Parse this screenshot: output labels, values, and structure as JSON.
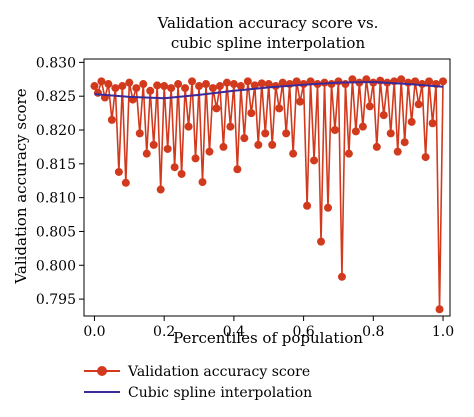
{
  "chart_data": {
    "type": "line",
    "title": [
      "Validation accuracy score vs.",
      "cubic spline interpolation"
    ],
    "xlabel": "Percentiles of population",
    "ylabel": "Validation accuracy score",
    "xlim": [
      -0.03,
      1.02
    ],
    "ylim": [
      0.7925,
      0.8305
    ],
    "xticks": [
      0.0,
      0.2,
      0.4,
      0.6,
      0.8,
      1.0
    ],
    "xtick_labels": [
      "0.0",
      "0.2",
      "0.4",
      "0.6",
      "0.8",
      "1.0"
    ],
    "yticks": [
      0.795,
      0.8,
      0.805,
      0.81,
      0.815,
      0.82,
      0.825,
      0.83
    ],
    "ytick_labels": [
      "0.795",
      "0.800",
      "0.805",
      "0.810",
      "0.815",
      "0.820",
      "0.825",
      "0.830"
    ],
    "grid": false,
    "legend_position": "below-left",
    "series": [
      {
        "name": "Validation accuracy score",
        "style": "line-markers",
        "color": "#d23a1e",
        "x": [
          0.0,
          0.01,
          0.02,
          0.03,
          0.04,
          0.05,
          0.06,
          0.07,
          0.08,
          0.09,
          0.1,
          0.11,
          0.12,
          0.13,
          0.14,
          0.15,
          0.16,
          0.17,
          0.18,
          0.19,
          0.2,
          0.21,
          0.22,
          0.23,
          0.24,
          0.25,
          0.26,
          0.27,
          0.28,
          0.29,
          0.3,
          0.31,
          0.32,
          0.33,
          0.34,
          0.35,
          0.36,
          0.37,
          0.38,
          0.39,
          0.4,
          0.41,
          0.42,
          0.43,
          0.44,
          0.45,
          0.46,
          0.47,
          0.48,
          0.49,
          0.5,
          0.51,
          0.52,
          0.53,
          0.54,
          0.55,
          0.56,
          0.57,
          0.58,
          0.59,
          0.6,
          0.61,
          0.62,
          0.63,
          0.64,
          0.65,
          0.66,
          0.67,
          0.68,
          0.69,
          0.7,
          0.71,
          0.72,
          0.73,
          0.74,
          0.75,
          0.76,
          0.77,
          0.78,
          0.79,
          0.8,
          0.81,
          0.82,
          0.83,
          0.84,
          0.85,
          0.86,
          0.87,
          0.88,
          0.89,
          0.9,
          0.91,
          0.92,
          0.93,
          0.94,
          0.95,
          0.96,
          0.97,
          0.98,
          0.99,
          1.0
        ],
        "values": [
          0.8265,
          0.8255,
          0.8272,
          0.8248,
          0.8268,
          0.8215,
          0.8262,
          0.8138,
          0.8265,
          0.8122,
          0.827,
          0.8245,
          0.8262,
          0.8195,
          0.8268,
          0.8165,
          0.8258,
          0.8178,
          0.8266,
          0.8112,
          0.8265,
          0.8172,
          0.8262,
          0.8145,
          0.8268,
          0.8135,
          0.8262,
          0.8205,
          0.8272,
          0.8158,
          0.8265,
          0.8123,
          0.8268,
          0.8168,
          0.8262,
          0.8232,
          0.8265,
          0.8175,
          0.827,
          0.8205,
          0.8268,
          0.8142,
          0.8265,
          0.8188,
          0.8272,
          0.8225,
          0.8266,
          0.8178,
          0.8269,
          0.8195,
          0.8268,
          0.8178,
          0.8265,
          0.8232,
          0.827,
          0.8195,
          0.8268,
          0.8165,
          0.8272,
          0.8242,
          0.8268,
          0.8088,
          0.8272,
          0.8155,
          0.8268,
          0.8035,
          0.827,
          0.8085,
          0.8268,
          0.82,
          0.8272,
          0.7983,
          0.8268,
          0.8165,
          0.8275,
          0.8198,
          0.827,
          0.8205,
          0.8275,
          0.8235,
          0.827,
          0.8175,
          0.8273,
          0.8222,
          0.827,
          0.8195,
          0.8272,
          0.8168,
          0.8275,
          0.8182,
          0.827,
          0.8212,
          0.8272,
          0.8238,
          0.8268,
          0.816,
          0.8272,
          0.821,
          0.8268,
          0.7935,
          0.8272
        ]
      },
      {
        "name": "Cubic spline interpolation",
        "style": "line",
        "color": "#3a2a9a",
        "x": [
          0.0,
          0.1,
          0.2,
          0.3,
          0.4,
          0.5,
          0.6,
          0.7,
          0.8,
          0.9,
          1.0
        ],
        "values": [
          0.8253,
          0.8249,
          0.8247,
          0.8252,
          0.8258,
          0.8263,
          0.8267,
          0.827,
          0.8271,
          0.8268,
          0.8264
        ]
      }
    ]
  }
}
